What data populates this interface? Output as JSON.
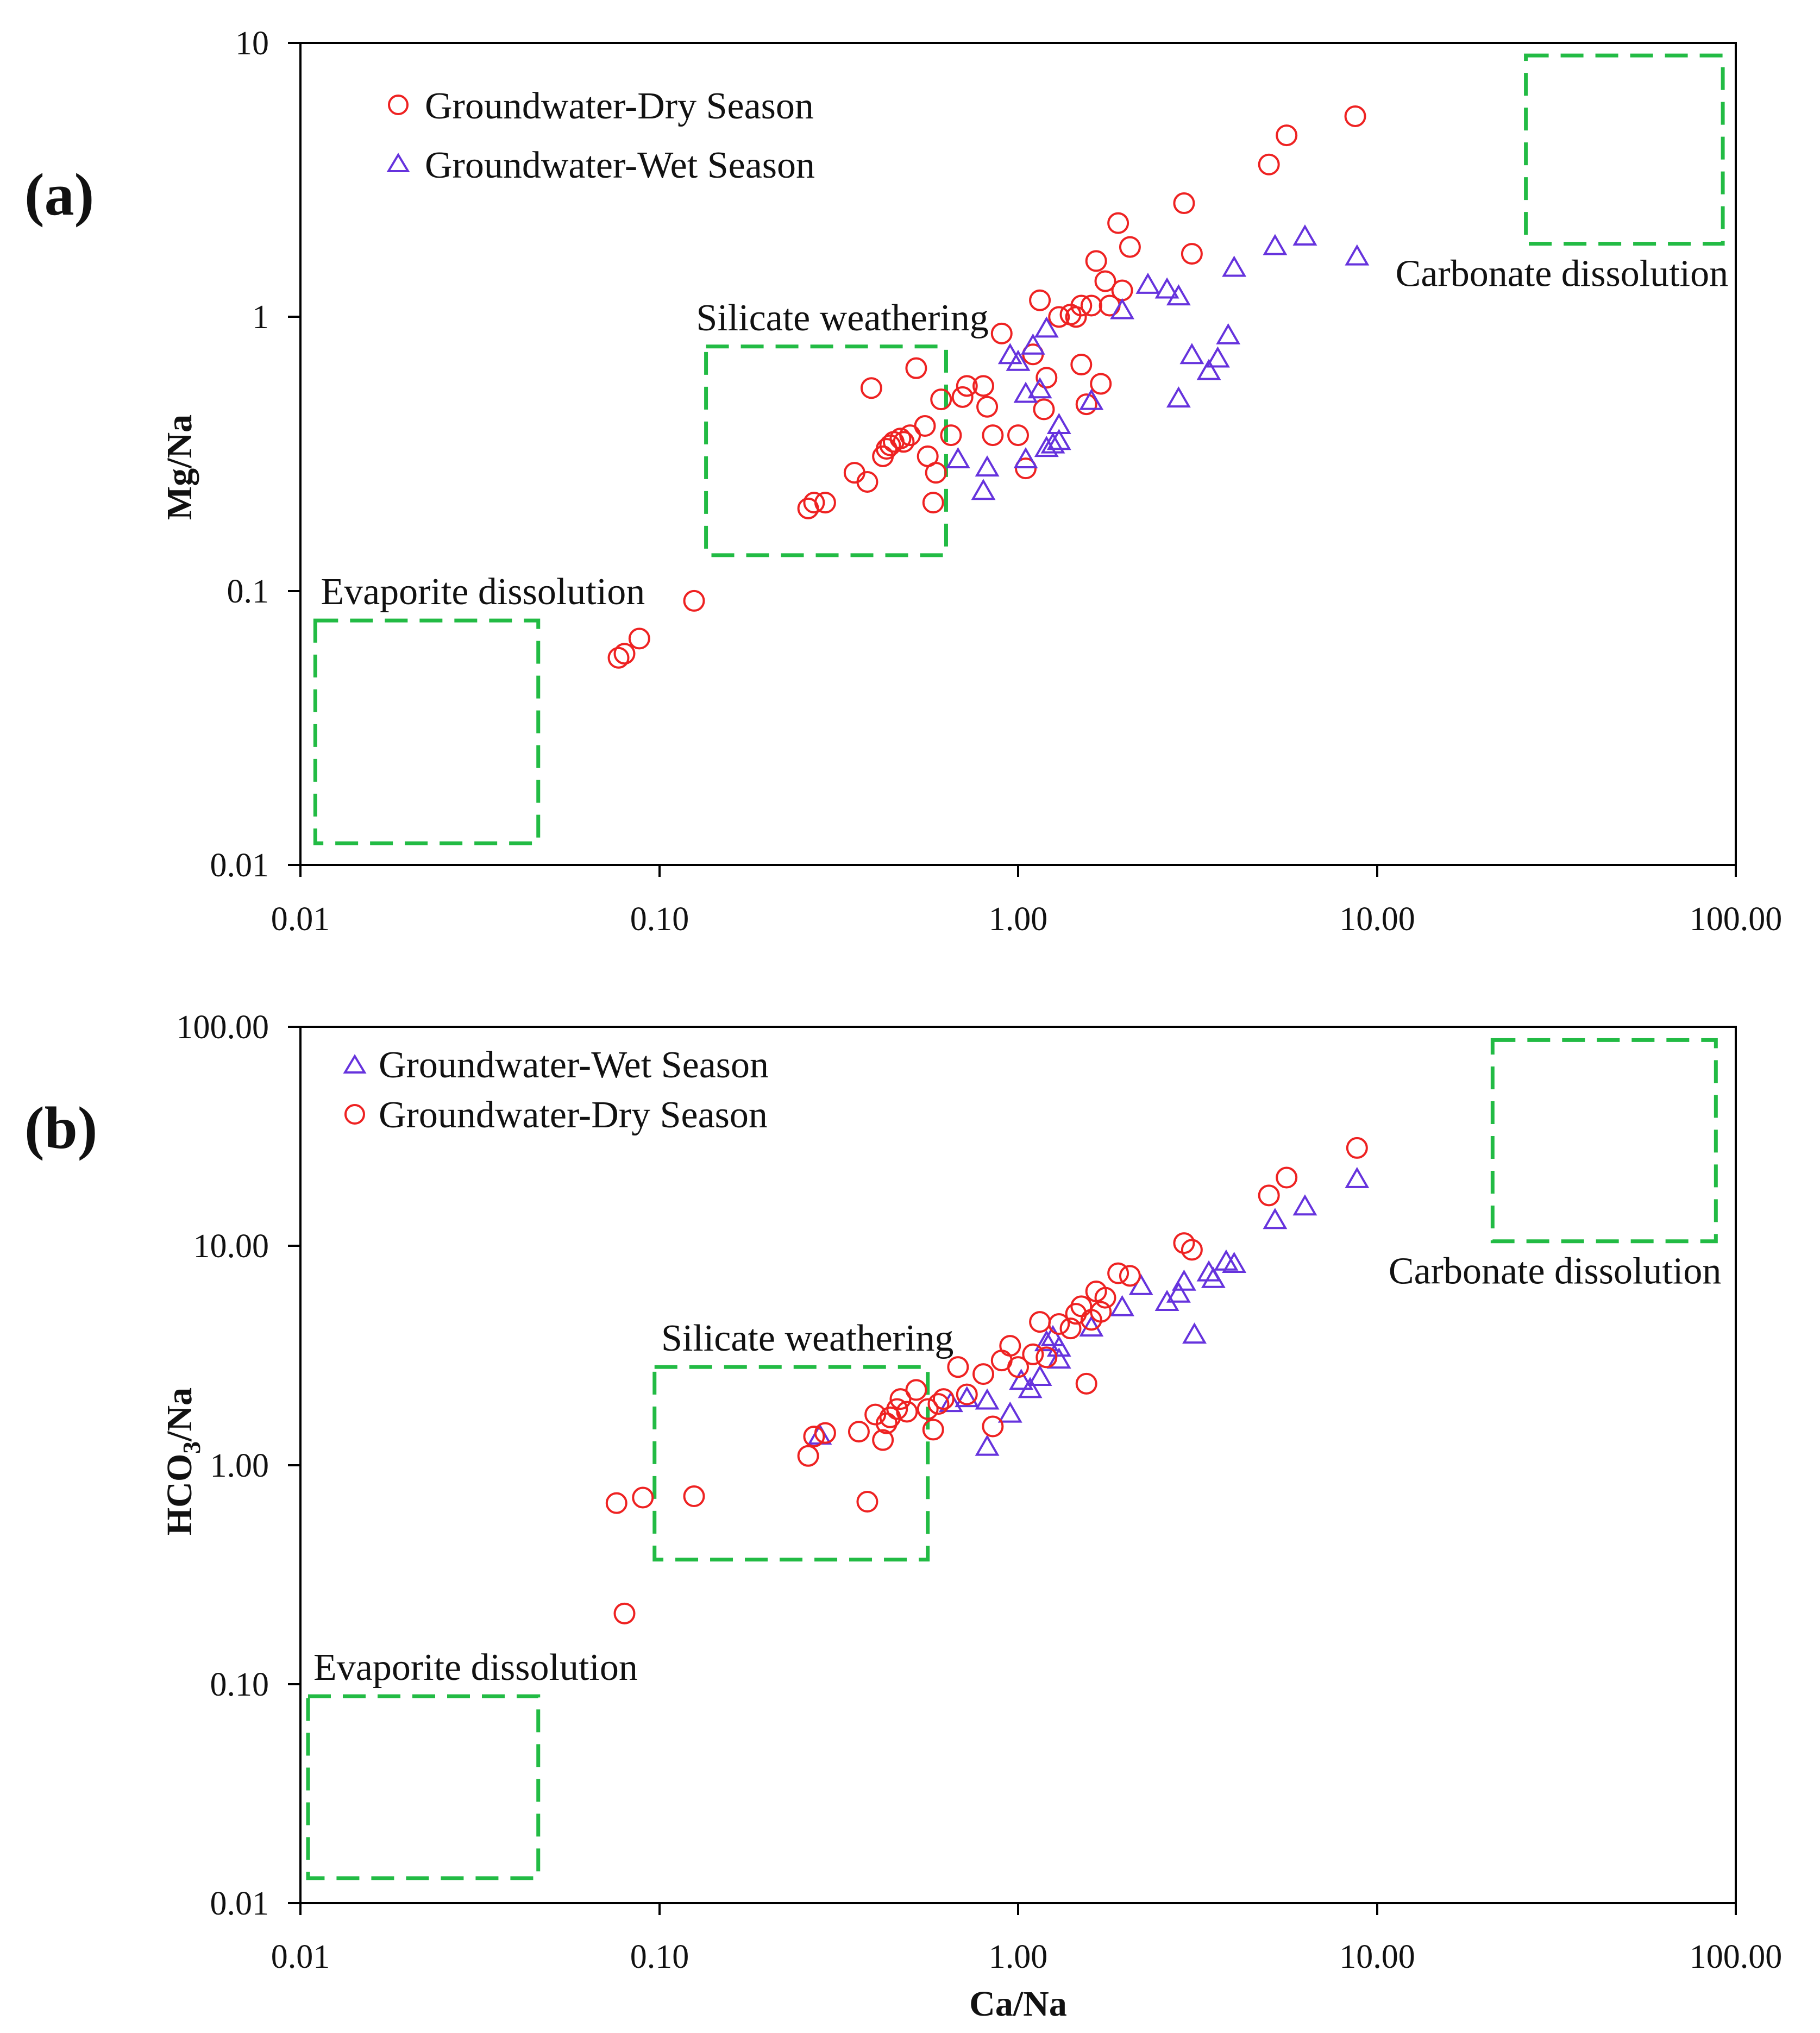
{
  "chart_data": [
    {
      "panel": "(a)",
      "type": "scatter",
      "xscale": "log",
      "yscale": "log",
      "xlabel": "",
      "ylabel": "Mg/Na",
      "xlim": [
        0.01,
        100
      ],
      "ylim": [
        0.01,
        10
      ],
      "xticks": [
        "0.01",
        "0.10",
        "1.00",
        "10.00",
        "100.00"
      ],
      "yticks": [
        "0.01",
        "0.1",
        "1",
        "10"
      ],
      "legend": {
        "position": "top-left",
        "order": [
          "dry",
          "wet"
        ]
      },
      "boxes": [
        {
          "label": "Evaporite dissolution",
          "x": [
            0.011,
            0.046
          ],
          "y": [
            0.012,
            0.078
          ],
          "label_pos": "above"
        },
        {
          "label": "Silicate weathering",
          "x": [
            0.135,
            0.63
          ],
          "y": [
            0.135,
            0.78
          ],
          "label_pos": "above"
        },
        {
          "label": "Carbonate dissolution",
          "x": [
            26,
            92
          ],
          "y": [
            1.85,
            9.0
          ],
          "label_pos": "below"
        }
      ],
      "series": [
        {
          "key": "dry",
          "name": "Groundwater-Dry Season",
          "marker": "circle",
          "color": "#ee2222",
          "points": [
            [
              0.077,
              0.057
            ],
            [
              0.08,
              0.059
            ],
            [
              0.088,
              0.067
            ],
            [
              0.125,
              0.092
            ],
            [
              0.26,
              0.2
            ],
            [
              0.27,
              0.21
            ],
            [
              0.29,
              0.21
            ],
            [
              0.35,
              0.27
            ],
            [
              0.38,
              0.25
            ],
            [
              0.39,
              0.55
            ],
            [
              0.42,
              0.31
            ],
            [
              0.43,
              0.33
            ],
            [
              0.44,
              0.34
            ],
            [
              0.45,
              0.35
            ],
            [
              0.47,
              0.36
            ],
            [
              0.48,
              0.35
            ],
            [
              0.5,
              0.37
            ],
            [
              0.52,
              0.65
            ],
            [
              0.55,
              0.4
            ],
            [
              0.56,
              0.31
            ],
            [
              0.58,
              0.21
            ],
            [
              0.59,
              0.27
            ],
            [
              0.61,
              0.5
            ],
            [
              0.65,
              0.37
            ],
            [
              0.7,
              0.51
            ],
            [
              0.72,
              0.56
            ],
            [
              0.8,
              0.56
            ],
            [
              0.82,
              0.47
            ],
            [
              0.85,
              0.37
            ],
            [
              0.9,
              0.87
            ],
            [
              1.0,
              0.37
            ],
            [
              1.05,
              0.28
            ],
            [
              1.1,
              0.73
            ],
            [
              1.15,
              1.15
            ],
            [
              1.18,
              0.46
            ],
            [
              1.2,
              0.6
            ],
            [
              1.3,
              1.0
            ],
            [
              1.4,
              1.02
            ],
            [
              1.45,
              1.0
            ],
            [
              1.5,
              1.1
            ],
            [
              1.5,
              0.67
            ],
            [
              1.55,
              0.48
            ],
            [
              1.6,
              1.1
            ],
            [
              1.65,
              1.6
            ],
            [
              1.7,
              0.57
            ],
            [
              1.75,
              1.35
            ],
            [
              1.8,
              1.1
            ],
            [
              1.9,
              2.2
            ],
            [
              1.95,
              1.25
            ],
            [
              2.05,
              1.8
            ],
            [
              2.9,
              2.6
            ],
            [
              3.05,
              1.7
            ],
            [
              5.0,
              3.6
            ],
            [
              5.6,
              4.6
            ],
            [
              8.7,
              5.4
            ]
          ]
        },
        {
          "key": "wet",
          "name": "Groundwater-Wet Season",
          "marker": "triangle",
          "color": "#6633dd",
          "points": [
            [
              0.68,
              0.3
            ],
            [
              0.8,
              0.23
            ],
            [
              0.82,
              0.28
            ],
            [
              0.95,
              0.72
            ],
            [
              1.0,
              0.68
            ],
            [
              1.05,
              0.3
            ],
            [
              1.05,
              0.52
            ],
            [
              1.1,
              0.78
            ],
            [
              1.15,
              0.54
            ],
            [
              1.2,
              0.33
            ],
            [
              1.2,
              0.9
            ],
            [
              1.25,
              0.34
            ],
            [
              1.3,
              0.4
            ],
            [
              1.3,
              0.35
            ],
            [
              1.6,
              0.49
            ],
            [
              1.95,
              1.05
            ],
            [
              2.3,
              1.3
            ],
            [
              2.6,
              1.25
            ],
            [
              2.8,
              1.18
            ],
            [
              2.8,
              0.5
            ],
            [
              3.05,
              0.72
            ],
            [
              3.4,
              0.63
            ],
            [
              3.6,
              0.7
            ],
            [
              3.85,
              0.85
            ],
            [
              4.0,
              1.5
            ],
            [
              5.2,
              1.8
            ],
            [
              6.3,
              1.95
            ],
            [
              8.8,
              1.65
            ]
          ]
        }
      ]
    },
    {
      "panel": "(b)",
      "type": "scatter",
      "xscale": "log",
      "yscale": "log",
      "xlabel": "Ca/Na",
      "ylabel": "HCO3/Na",
      "ylabel_main": "HCO",
      "ylabel_sub": "3",
      "ylabel_tail": "/Na",
      "xlim": [
        0.01,
        100
      ],
      "ylim": [
        0.01,
        100
      ],
      "xticks": [
        "0.01",
        "0.10",
        "1.00",
        "10.00",
        "100.00"
      ],
      "yticks": [
        "0.01",
        "0.10",
        "1.00",
        "10.00",
        "100.00"
      ],
      "legend": {
        "position": "top-left",
        "order": [
          "wet",
          "dry"
        ]
      },
      "boxes": [
        {
          "label": "Evaporite dissolution",
          "x": [
            0.0105,
            0.046
          ],
          "y": [
            0.013,
            0.088
          ],
          "label_pos": "above"
        },
        {
          "label": "Silicate weathering",
          "x": [
            0.097,
            0.56
          ],
          "y": [
            0.37,
            2.8
          ],
          "label_pos": "above"
        },
        {
          "label": "Carbonate dissolution",
          "x": [
            21,
            88
          ],
          "y": [
            10.5,
            87
          ],
          "label_pos": "below"
        }
      ],
      "series": [
        {
          "key": "wet",
          "name": "Groundwater-Wet Season",
          "marker": "triangle",
          "color": "#6633dd",
          "points": [
            [
              0.28,
              1.35
            ],
            [
              0.65,
              1.9
            ],
            [
              0.72,
              2.0
            ],
            [
              0.82,
              1.95
            ],
            [
              0.82,
              1.2
            ],
            [
              0.95,
              1.7
            ],
            [
              1.02,
              2.4
            ],
            [
              1.08,
              2.2
            ],
            [
              1.15,
              2.5
            ],
            [
              1.2,
              3.6
            ],
            [
              1.25,
              3.8
            ],
            [
              1.3,
              3.0
            ],
            [
              1.3,
              3.4
            ],
            [
              1.6,
              4.2
            ],
            [
              1.95,
              5.2
            ],
            [
              2.2,
              6.5
            ],
            [
              2.6,
              5.5
            ],
            [
              2.8,
              6.0
            ],
            [
              2.9,
              6.8
            ],
            [
              3.1,
              3.9
            ],
            [
              3.4,
              7.5
            ],
            [
              3.5,
              7.0
            ],
            [
              3.8,
              8.4
            ],
            [
              4.0,
              8.2
            ],
            [
              5.2,
              13.0
            ],
            [
              6.3,
              15.0
            ],
            [
              8.8,
              20.0
            ]
          ]
        },
        {
          "key": "dry",
          "name": "Groundwater-Dry Season",
          "marker": "circle",
          "color": "#ee2222",
          "points": [
            [
              0.076,
              0.67
            ],
            [
              0.08,
              0.21
            ],
            [
              0.09,
              0.71
            ],
            [
              0.125,
              0.72
            ],
            [
              0.26,
              1.1
            ],
            [
              0.27,
              1.35
            ],
            [
              0.29,
              1.4
            ],
            [
              0.36,
              1.42
            ],
            [
              0.38,
              0.68
            ],
            [
              0.4,
              1.7
            ],
            [
              0.42,
              1.3
            ],
            [
              0.43,
              1.55
            ],
            [
              0.44,
              1.65
            ],
            [
              0.46,
              1.8
            ],
            [
              0.47,
              2.0
            ],
            [
              0.49,
              1.75
            ],
            [
              0.52,
              2.2
            ],
            [
              0.56,
              1.8
            ],
            [
              0.58,
              1.45
            ],
            [
              0.6,
              1.9
            ],
            [
              0.62,
              2.0
            ],
            [
              0.68,
              2.8
            ],
            [
              0.72,
              2.1
            ],
            [
              0.8,
              2.6
            ],
            [
              0.85,
              1.5
            ],
            [
              0.9,
              3.0
            ],
            [
              0.95,
              3.5
            ],
            [
              1.0,
              2.8
            ],
            [
              1.1,
              3.2
            ],
            [
              1.15,
              4.5
            ],
            [
              1.2,
              3.1
            ],
            [
              1.3,
              4.4
            ],
            [
              1.4,
              4.2
            ],
            [
              1.45,
              4.9
            ],
            [
              1.5,
              5.3
            ],
            [
              1.55,
              2.35
            ],
            [
              1.6,
              4.6
            ],
            [
              1.65,
              6.2
            ],
            [
              1.7,
              5.0
            ],
            [
              1.75,
              5.8
            ],
            [
              1.9,
              7.5
            ],
            [
              2.05,
              7.3
            ],
            [
              2.9,
              10.3
            ],
            [
              3.05,
              9.6
            ],
            [
              5.0,
              17.0
            ],
            [
              5.6,
              20.5
            ],
            [
              8.8,
              28.0
            ]
          ]
        }
      ]
    }
  ]
}
